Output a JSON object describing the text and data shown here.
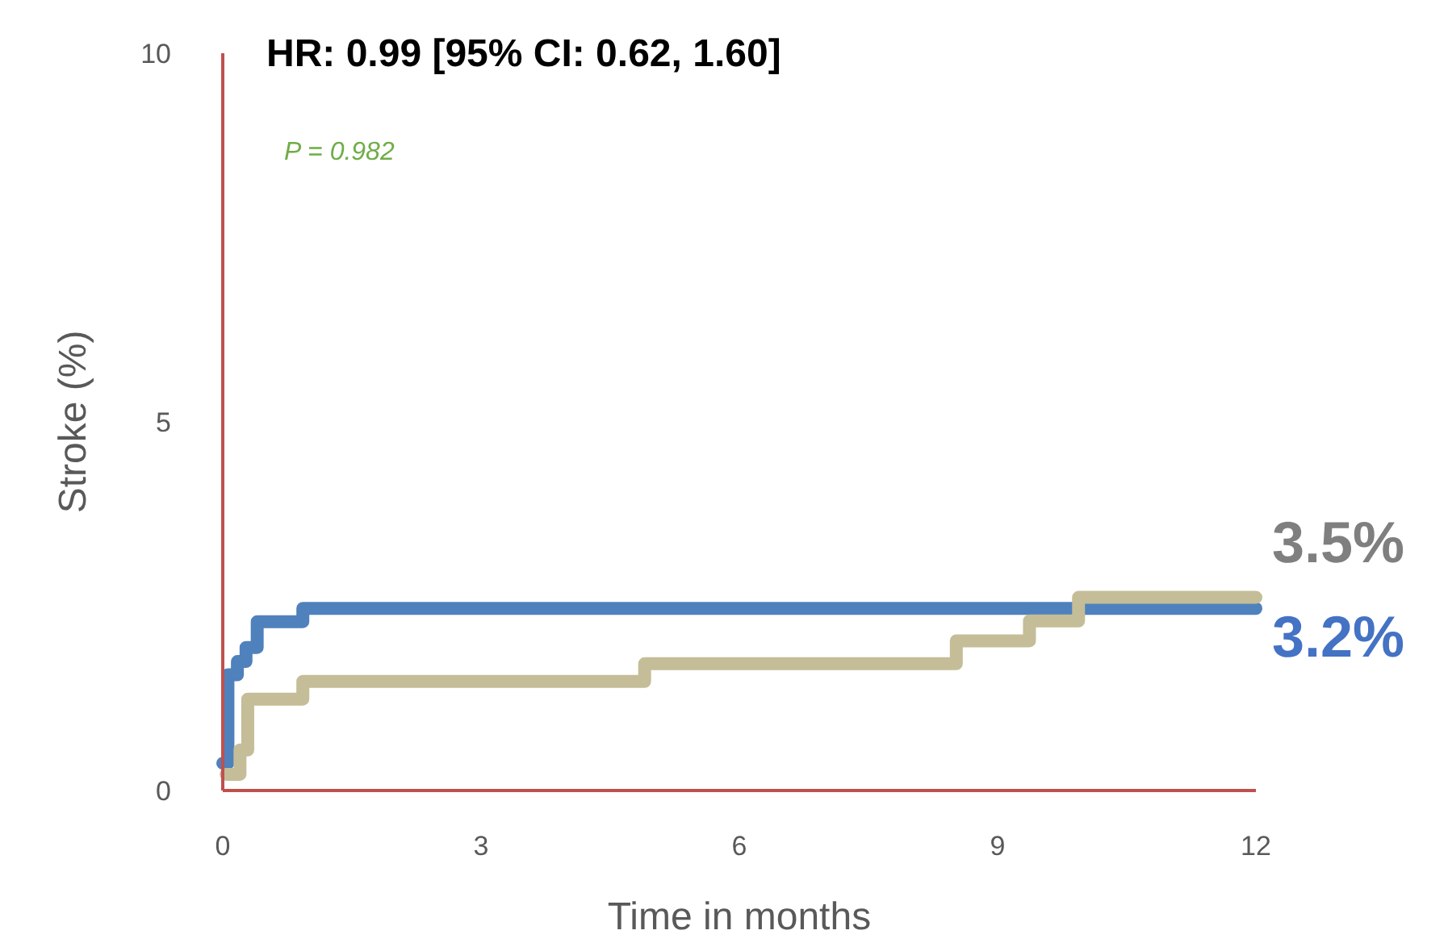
{
  "chart_data": {
    "type": "step",
    "title": "HR: 0.99 [95% CI: 0.62, 1.60]",
    "xlabel": "Time in months",
    "ylabel": "Stroke (%)",
    "annotations": [
      "P = 0.982",
      "3.5%",
      "3.2%"
    ],
    "series": [
      {
        "color": "#4f81bd",
        "x": [
          0,
          0.06,
          0.17,
          0.27,
          0.4,
          0.93,
          12
        ],
        "values": [
          0.37,
          1.57,
          1.75,
          1.94,
          2.29,
          2.47,
          2.47
        ]
      },
      {
        "color": "#c4bd97",
        "x": [
          0.04,
          0.2,
          0.29,
          0.93,
          4.9,
          8.52,
          9.37,
          9.94,
          12
        ],
        "values": [
          0.22,
          0.55,
          1.24,
          1.48,
          1.72,
          2.03,
          2.3,
          2.62,
          2.62
        ]
      }
    ],
    "xlim": [
      0,
      12
    ],
    "xticks": [
      0,
      3,
      6,
      9,
      12
    ],
    "ylim": [
      0,
      10
    ],
    "yticks": [
      0,
      5,
      10
    ],
    "grid": false,
    "line_style": "solid",
    "marker": "none"
  }
}
